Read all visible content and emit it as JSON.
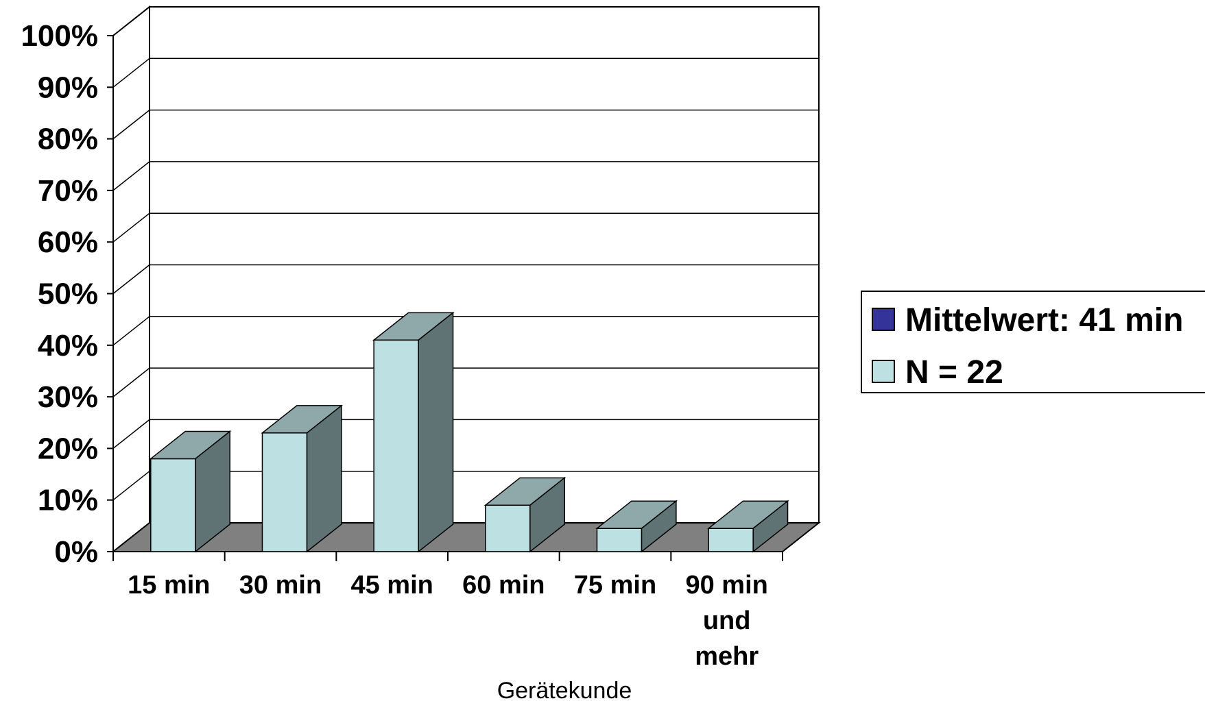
{
  "chart_data": {
    "type": "bar",
    "title": "",
    "xlabel": "Gerätekunde",
    "ylabel": "",
    "ylim": [
      0,
      100
    ],
    "y_ticks": [
      "0%",
      "10%",
      "20%",
      "30%",
      "40%",
      "50%",
      "60%",
      "70%",
      "80%",
      "90%",
      "100%"
    ],
    "categories": [
      [
        "15 min"
      ],
      [
        "30 min"
      ],
      [
        "45 min"
      ],
      [
        "60 min"
      ],
      [
        "75 min"
      ],
      [
        "90 min",
        "und",
        "mehr"
      ]
    ],
    "values": [
      18,
      23,
      41,
      9,
      4.5,
      4.5
    ],
    "grid": true,
    "three_d": true,
    "legend_position": "right",
    "legend": [
      {
        "label": "Mittelwert: 41 min",
        "color": "#333399"
      },
      {
        "label": "N = 22",
        "color": "#bde0e3"
      }
    ],
    "colors": {
      "bar_front": "#bde0e3",
      "bar_top": "#8fa8aa",
      "bar_side": "#5f7374",
      "floor": "#808080",
      "grid": "#000000"
    }
  }
}
